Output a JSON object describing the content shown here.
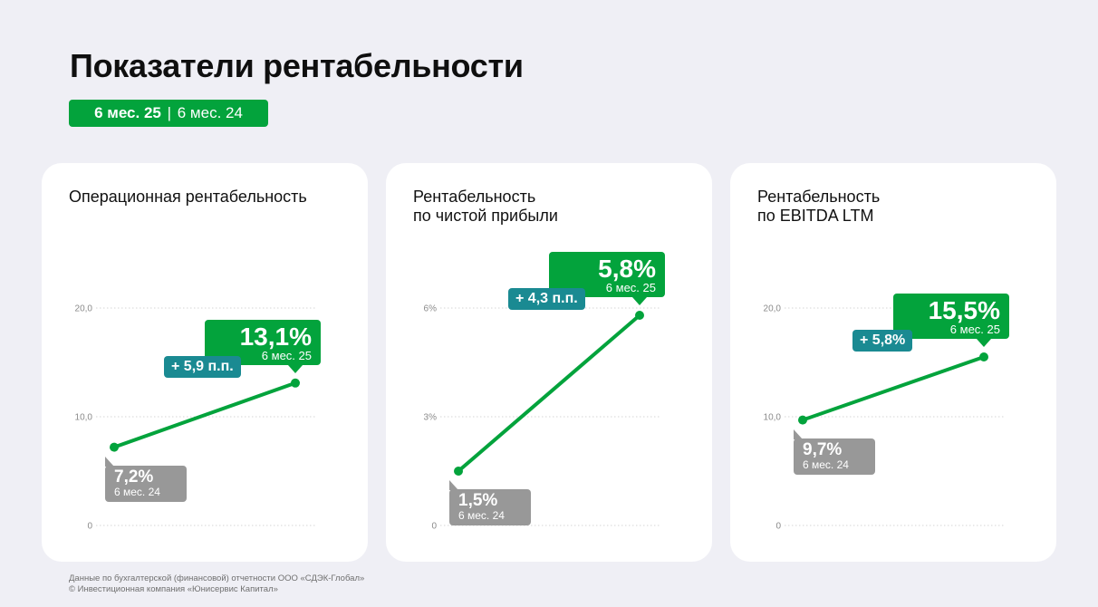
{
  "page": {
    "title": "Показатели рентабельности",
    "period_current": "6 мес. 25",
    "period_separator": "|",
    "period_previous": "6 мес. 24"
  },
  "colors": {
    "accent_green": "#03a33c",
    "delta_teal": "#1a8a92",
    "prev_gray": "#989898"
  },
  "chart_data": [
    {
      "type": "line",
      "title": "Операционная рентабельность",
      "ylim": [
        0,
        20
      ],
      "y_ticks": [
        "0",
        "10,0",
        "20,0"
      ],
      "y_tick_values": [
        0,
        10,
        20
      ],
      "grid": true,
      "x": [
        "6 мес. 24",
        "6 мес. 25"
      ],
      "values": [
        7.2,
        13.1
      ],
      "prev_label_value": "7,2%",
      "prev_label_period": "6 мес. 24",
      "current_label_value": "13,1%",
      "current_label_period": "6 мес. 25",
      "delta_label": "+ 5,9 п.п."
    },
    {
      "type": "line",
      "title": "Рентабельность\nпо чистой прибыли",
      "ylim": [
        0,
        6
      ],
      "y_ticks": [
        "0",
        "3%",
        "6%"
      ],
      "y_tick_values": [
        0,
        3,
        6
      ],
      "grid": true,
      "x": [
        "6 мес. 24",
        "6 мес. 25"
      ],
      "values": [
        1.5,
        5.8
      ],
      "prev_label_value": "1,5%",
      "prev_label_period": "6 мес. 24",
      "current_label_value": "5,8%",
      "current_label_period": "6 мес. 25",
      "delta_label": "+ 4,3 п.п."
    },
    {
      "type": "line",
      "title": "Рентабельность\nпо EBITDA LTM",
      "ylim": [
        0,
        20
      ],
      "y_ticks": [
        "0",
        "10,0",
        "20,0"
      ],
      "y_tick_values": [
        0,
        10,
        20
      ],
      "grid": true,
      "x": [
        "6 мес. 24",
        "6 мес. 25"
      ],
      "values": [
        9.7,
        15.5
      ],
      "prev_label_value": "9,7%",
      "prev_label_period": "6 мес. 24",
      "current_label_value": "15,5%",
      "current_label_period": "6 мес. 25",
      "delta_label": "+ 5,8%"
    }
  ],
  "footer": {
    "line1": "Данные по бухгалтерской (финансовой) отчетности ООО «СДЭК-Глобал»",
    "line2": "© Инвестиционная компания «Юнисервис Капитал»"
  }
}
